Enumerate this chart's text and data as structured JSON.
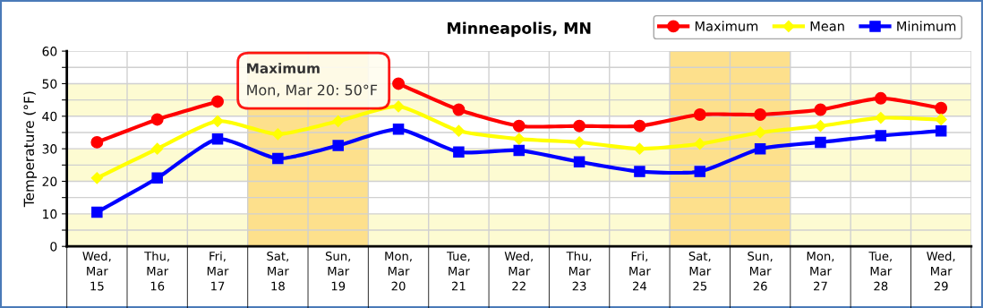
{
  "chart_data": {
    "type": "line",
    "title": "Minneapolis, MN",
    "ylabel": "Temperature (°F)",
    "categories": [
      "Wed,\nMar\n15",
      "Thu,\nMar\n16",
      "Fri,\nMar\n17",
      "Sat,\nMar\n18",
      "Sun,\nMar\n19",
      "Mon,\nMar\n20",
      "Tue,\nMar\n21",
      "Wed,\nMar\n22",
      "Thu,\nMar\n23",
      "Fri,\nMar\n24",
      "Sat,\nMar\n25",
      "Sun,\nMar\n26",
      "Mon,\nMar\n27",
      "Tue,\nMar\n28",
      "Wed,\nMar\n29"
    ],
    "series": [
      {
        "name": "Maximum",
        "color": "#ff0000",
        "marker": "circle",
        "values": [
          32,
          39,
          44.5,
          null,
          null,
          50,
          42,
          37,
          37,
          37,
          40.5,
          40.5,
          42,
          45.5,
          42.5
        ]
      },
      {
        "name": "Mean",
        "color": "#ffff00",
        "marker": "diamond",
        "values": [
          21,
          30,
          38.5,
          34.5,
          38.5,
          43,
          35.5,
          33,
          32,
          30,
          31.5,
          35,
          37,
          39.5,
          39
        ]
      },
      {
        "name": "Minimum",
        "color": "#0000ff",
        "marker": "square",
        "values": [
          10.5,
          21,
          33,
          27,
          31,
          36,
          29,
          29.5,
          26,
          23,
          23,
          30,
          32,
          34,
          35.5
        ]
      }
    ],
    "ylim": [
      0,
      60
    ],
    "yticks": [
      0,
      {
        "value": 5,
        "label": null
      },
      10,
      {
        "value": 15,
        "label": null
      },
      20,
      {
        "value": 25,
        "label": null
      },
      30,
      {
        "value": 35,
        "label": null
      },
      40,
      {
        "value": 45,
        "label": null
      },
      50,
      {
        "value": 55,
        "label": null
      },
      60
    ],
    "bands": [
      {
        "axis": "y",
        "from": 0,
        "to": 10,
        "color": "#fdfbd2"
      },
      {
        "axis": "y",
        "from": 20,
        "to": 30,
        "color": "#fdfbd2"
      },
      {
        "axis": "y",
        "from": 40,
        "to": 50,
        "color": "#fdfbd2"
      },
      {
        "axis": "x",
        "from": "Sat,\nMar\n18",
        "to": "Sun,\nMar\n19",
        "color": "#fde08c"
      },
      {
        "axis": "x",
        "from": "Sat,\nMar\n25",
        "to": "Sun,\nMar\n26",
        "color": "#fde08c"
      }
    ],
    "annotations": [
      "Maximum\nMon, Mar 20: 50°F"
    ],
    "grid": true,
    "legend": "top right",
    "line_style": "solid"
  }
}
